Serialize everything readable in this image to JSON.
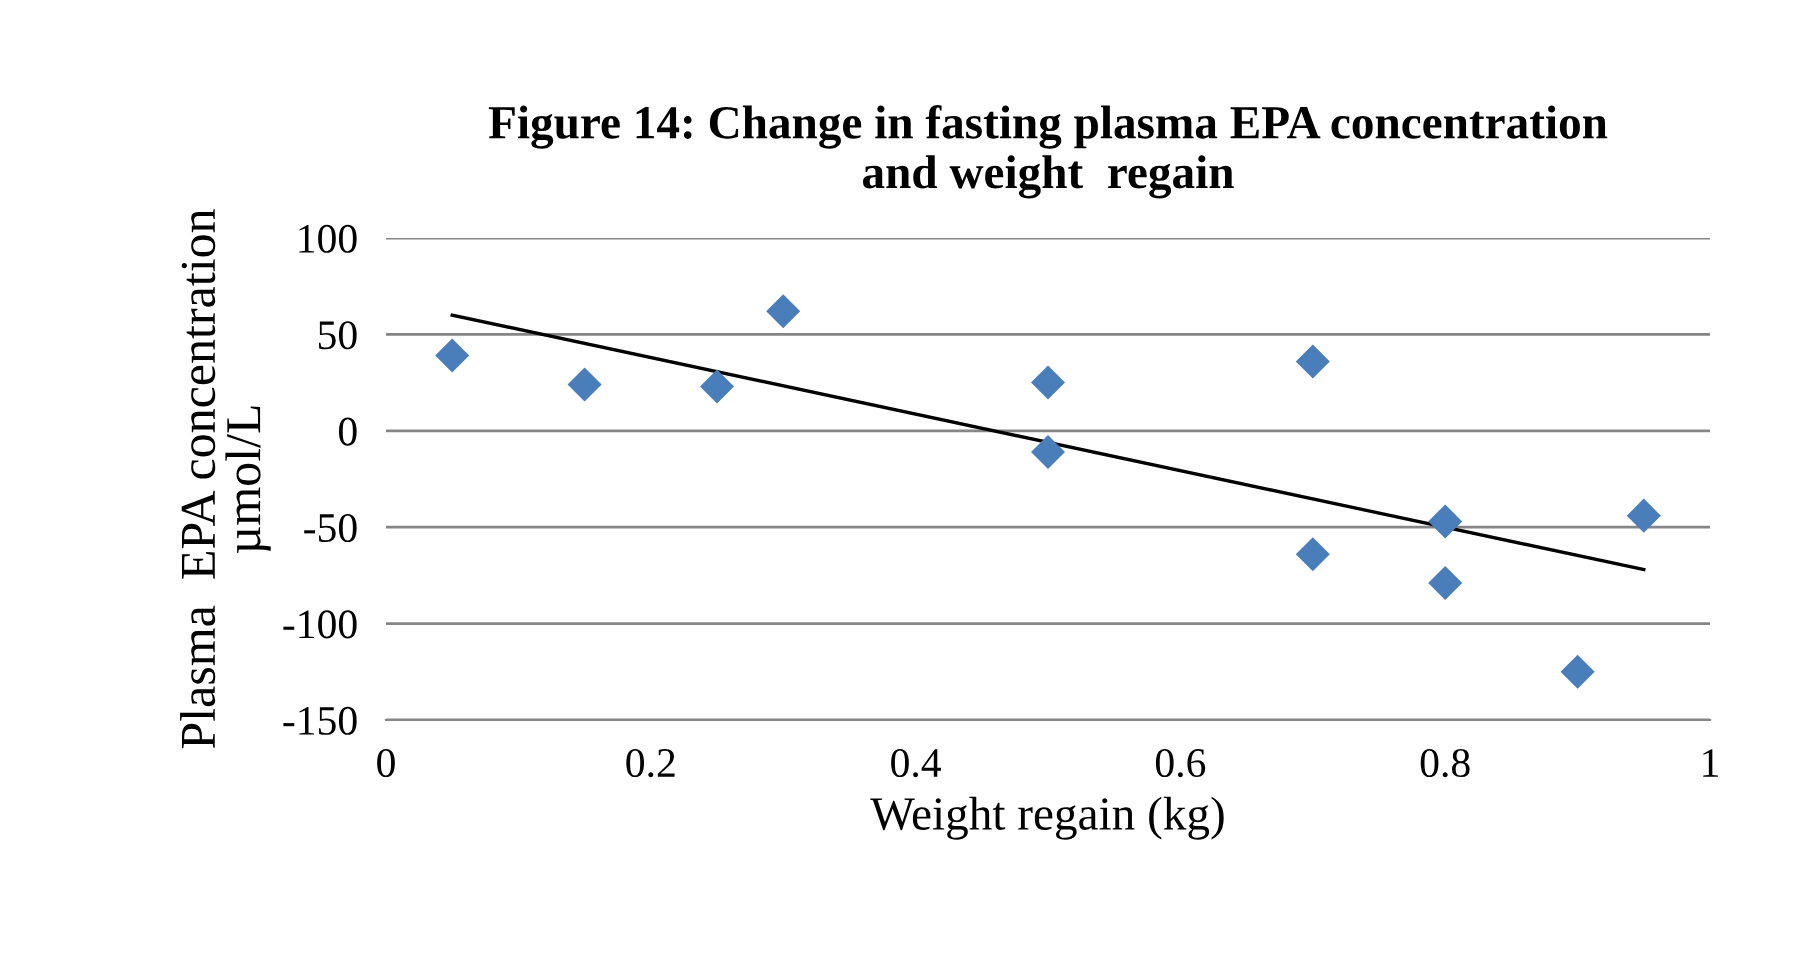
{
  "chart_data": {
    "type": "scatter",
    "title": "Figure 14: Change in fasting plasma EPA concentration\nand weight  regain",
    "xlabel": "Weight regain (kg)",
    "ylabel": "Plasma  EPA concentration\nµmol/L",
    "xlim": [
      0,
      1
    ],
    "xticks": [
      0,
      0.2,
      0.4,
      0.6,
      0.8,
      1
    ],
    "ylim": [
      -150,
      100
    ],
    "yticks": [
      -150,
      -100,
      -50,
      0,
      50,
      100
    ],
    "grid": "y",
    "marker": "diamond",
    "legend": false,
    "series": [
      {
        "color": "#4a7ebb",
        "x": [
          0.05,
          0.15,
          0.25,
          0.3,
          0.5,
          0.5,
          0.7,
          0.7,
          0.8,
          0.8,
          0.9,
          0.95
        ],
        "values": [
          39,
          24,
          23,
          62,
          25,
          -11,
          36,
          -64,
          -47,
          -79,
          -125,
          -44
        ]
      },
      {
        "type": "line",
        "color": "#000000",
        "x": [
          0.05,
          0.95
        ],
        "values": [
          60,
          -72
        ],
        "marker": "none"
      }
    ]
  }
}
